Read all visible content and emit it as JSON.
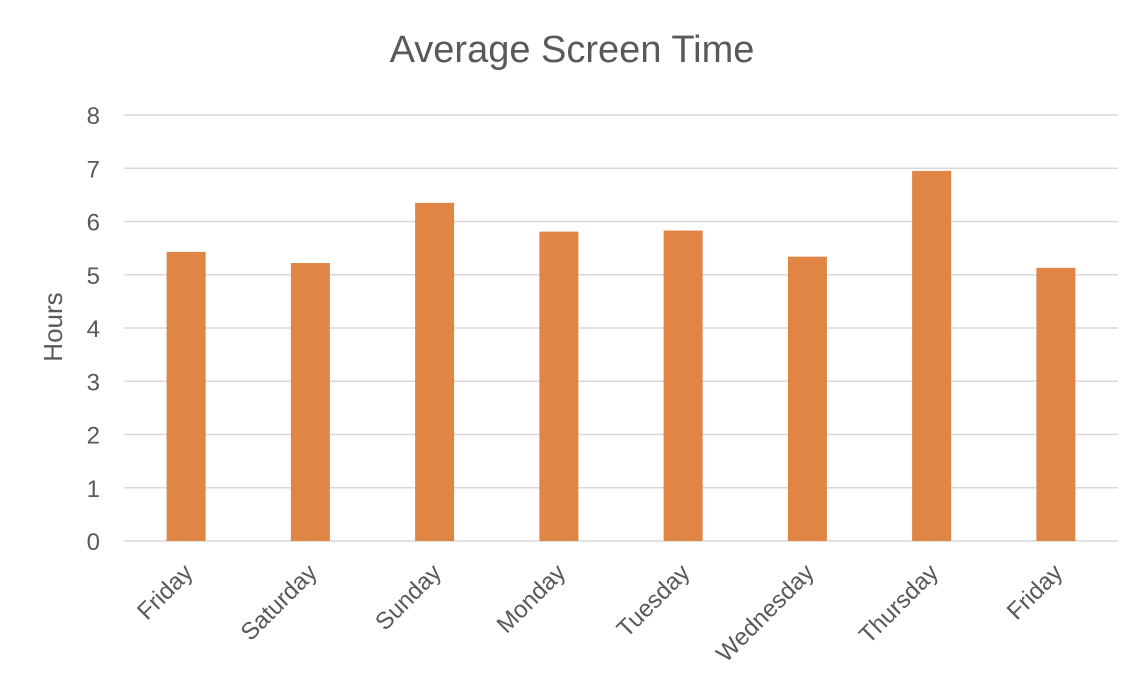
{
  "chart_data": {
    "type": "bar",
    "title": "Average Screen Time",
    "xlabel": "",
    "ylabel": "Hours",
    "categories": [
      "Friday",
      "Saturday",
      "Sunday",
      "Monday",
      "Tuesday",
      "Wednesday",
      "Thursday",
      "Friday"
    ],
    "series": [
      {
        "values": [
          5.43,
          5.22,
          6.35,
          5.81,
          5.83,
          5.34,
          6.95,
          5.13
        ],
        "color": "#E08544"
      }
    ],
    "ylim": [
      0,
      8
    ],
    "yticks": [
      0,
      1,
      2,
      3,
      4,
      5,
      6,
      7,
      8
    ],
    "grid": true,
    "legend": "none",
    "xtick_rotation": "-45"
  }
}
